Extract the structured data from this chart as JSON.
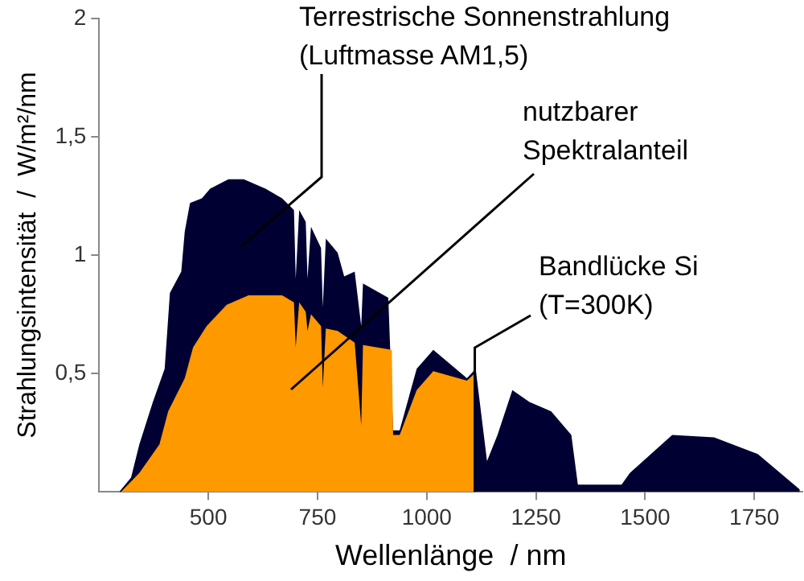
{
  "chart_data": {
    "type": "area",
    "xlabel": "Wellenlänge  / nm",
    "ylabel": "Strahlungsintensität  /  W/m²/nm",
    "xlim": [
      250,
      1860
    ],
    "ylim": [
      0,
      2
    ],
    "xticks": [
      500,
      750,
      1000,
      1250,
      1500,
      1750
    ],
    "yticks": [
      {
        "value": 0.5,
        "label": "0,5"
      },
      {
        "value": 1,
        "label": "1"
      },
      {
        "value": 1.5,
        "label": "1,5"
      },
      {
        "value": 2,
        "label": "2"
      }
    ],
    "grid": false,
    "legend": false,
    "series": [
      {
        "color": "#ff9900",
        "x": [
          300,
          342,
          388,
          408,
          446,
          465,
          496,
          542,
          592,
          669,
          696,
          700,
          708,
          723,
          727,
          735,
          758,
          762,
          769,
          796,
          835,
          850,
          854,
          920,
          923,
          938,
          977,
          1015,
          1092,
          1110,
          1111
        ],
        "values": [
          0,
          0.08,
          0.2,
          0.34,
          0.48,
          0.61,
          0.7,
          0.79,
          0.83,
          0.83,
          0.8,
          0.61,
          0.8,
          0.76,
          0.68,
          0.75,
          0.7,
          0.44,
          0.69,
          0.68,
          0.63,
          0.28,
          0.62,
          0.6,
          0.24,
          0.24,
          0.43,
          0.51,
          0.47,
          0.5,
          0
        ]
      },
      {
        "color": "#000033",
        "x": [
          296,
          323,
          342,
          373,
          400,
          412,
          438,
          446,
          458,
          485,
          504,
          546,
          581,
          631,
          669,
          696,
          700,
          708,
          723,
          727,
          735,
          758,
          762,
          769,
          796,
          811,
          835,
          850,
          854,
          912,
          923,
          938,
          977,
          1015,
          1092,
          1112,
          1138,
          1162,
          1196,
          1235,
          1285,
          1331,
          1346,
          1446,
          1465,
          1562,
          1658,
          1758,
          1854
        ],
        "values": [
          0,
          0.06,
          0.2,
          0.38,
          0.52,
          0.84,
          0.93,
          1.1,
          1.22,
          1.24,
          1.28,
          1.32,
          1.32,
          1.28,
          1.24,
          1.19,
          0.9,
          1.19,
          1.14,
          0.9,
          1.12,
          1.03,
          0.78,
          1.07,
          1.01,
          0.91,
          0.93,
          0.7,
          0.88,
          0.82,
          0.26,
          0.26,
          0.52,
          0.6,
          0.48,
          0.52,
          0.13,
          0.24,
          0.43,
          0.38,
          0.34,
          0.24,
          0.03,
          0.03,
          0.08,
          0.24,
          0.23,
          0.16,
          0.01
        ]
      }
    ],
    "annotations": [
      "Terrestrische Sonnenstrahlung\n(Luftmasse AM1,5)",
      "nutzbarer\nSpektralanteil",
      {
        "text": "Bandlücke Si\n(T=300K)",
        "x": 1110,
        "y": 0
      }
    ]
  }
}
